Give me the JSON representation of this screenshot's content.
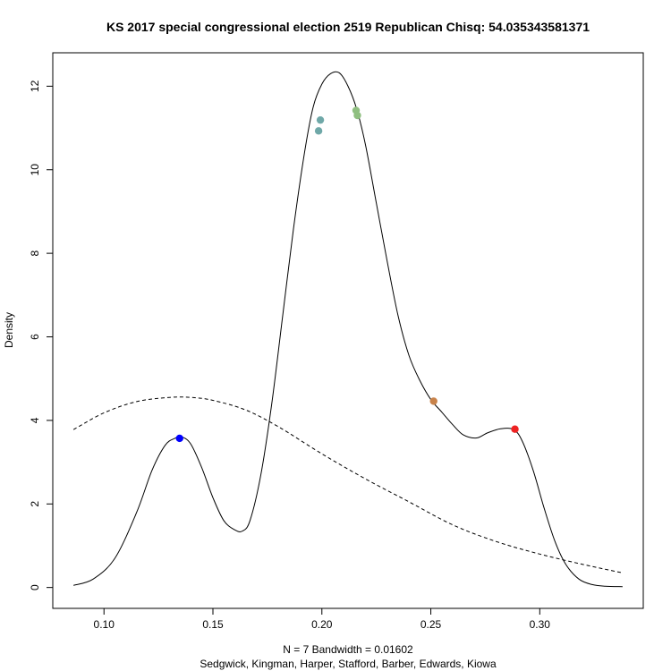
{
  "chart_data": {
    "type": "line",
    "title": "KS 2017 special congressional election 2519 Republican Chisq: 54.035343581371",
    "xlabel_line1": "N = 7   Bandwidth = 0.01602",
    "xlabel_line2": "Sedgwick, Kingman, Harper, Stafford, Barber, Edwards, Kiowa",
    "ylabel": "Density",
    "xlim": [
      0.0765,
      0.3475
    ],
    "ylim": [
      -0.5,
      12.8
    ],
    "x_ticks": [
      0.1,
      0.15,
      0.2,
      0.25,
      0.3
    ],
    "x_tick_labels": [
      "0.10",
      "0.15",
      "0.20",
      "0.25",
      "0.30"
    ],
    "y_ticks": [
      0,
      2,
      4,
      6,
      8,
      10,
      12
    ],
    "y_tick_labels": [
      "0",
      "2",
      "4",
      "6",
      "8",
      "10",
      "12"
    ],
    "grid": false,
    "legend": "none",
    "series": [
      {
        "style": "solid",
        "color": "#000000",
        "x": [
          0.086,
          0.095,
          0.105,
          0.115,
          0.122,
          0.128,
          0.1325,
          0.136,
          0.14,
          0.145,
          0.15,
          0.155,
          0.16,
          0.1635,
          0.167,
          0.172,
          0.177,
          0.182,
          0.187,
          0.192,
          0.196,
          0.2,
          0.204,
          0.208,
          0.212,
          0.216,
          0.22,
          0.225,
          0.23,
          0.235,
          0.24,
          0.245,
          0.25,
          0.255,
          0.26,
          0.265,
          0.271,
          0.276,
          0.282,
          0.288,
          0.292,
          0.297,
          0.302,
          0.307,
          0.312,
          0.318,
          0.324,
          0.33,
          0.338
        ],
        "y": [
          0.05,
          0.2,
          0.7,
          1.8,
          2.8,
          3.4,
          3.57,
          3.6,
          3.42,
          2.85,
          2.15,
          1.6,
          1.38,
          1.35,
          1.6,
          2.7,
          4.4,
          6.5,
          8.6,
          10.4,
          11.5,
          12.05,
          12.3,
          12.32,
          12.0,
          11.45,
          10.6,
          9.2,
          7.8,
          6.5,
          5.55,
          4.95,
          4.5,
          4.2,
          3.9,
          3.65,
          3.58,
          3.7,
          3.8,
          3.78,
          3.5,
          2.8,
          1.9,
          1.1,
          0.55,
          0.2,
          0.07,
          0.03,
          0.02
        ]
      },
      {
        "style": "dashed",
        "color": "#000000",
        "x": [
          0.086,
          0.1,
          0.115,
          0.13,
          0.14,
          0.15,
          0.165,
          0.18,
          0.2,
          0.22,
          0.24,
          0.26,
          0.28,
          0.3,
          0.32,
          0.338
        ],
        "y": [
          3.78,
          4.18,
          4.45,
          4.55,
          4.55,
          4.48,
          4.25,
          3.85,
          3.2,
          2.6,
          2.05,
          1.5,
          1.1,
          0.8,
          0.55,
          0.35
        ]
      }
    ],
    "points": [
      {
        "x": 0.1347,
        "y": 3.57,
        "color": "#0000ff"
      },
      {
        "x": 0.1985,
        "y": 10.93,
        "color": "#6fa8a8"
      },
      {
        "x": 0.1993,
        "y": 11.19,
        "color": "#6fa8a8"
      },
      {
        "x": 0.2157,
        "y": 11.42,
        "color": "#8fbf80"
      },
      {
        "x": 0.2163,
        "y": 11.3,
        "color": "#8fbf80"
      },
      {
        "x": 0.2513,
        "y": 4.46,
        "color": "#c8824a"
      },
      {
        "x": 0.2886,
        "y": 3.79,
        "color": "#ee2222"
      }
    ]
  }
}
